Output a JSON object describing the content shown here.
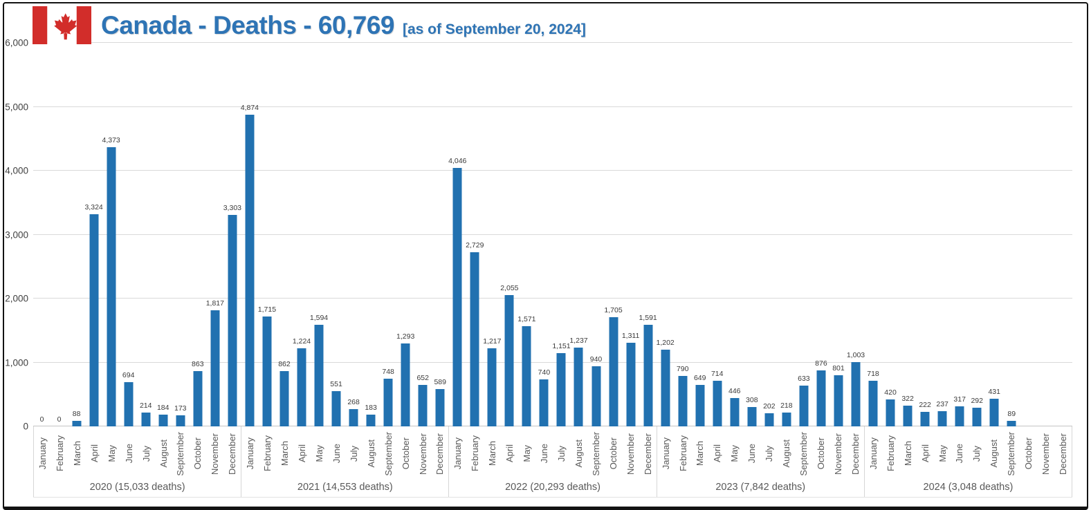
{
  "header": {
    "title": "Canada - Deaths - 60,769",
    "subtitle": "[as of September 20, 2024]",
    "flag_icon": "canada-flag-icon",
    "title_color": "#2e74b5"
  },
  "chart_data": {
    "type": "bar",
    "title": "Canada - Deaths - 60,769",
    "subtitle": "[as of September 20, 2024]",
    "bar_color": "#2171b0",
    "grid": true,
    "ylim": [
      0,
      6000
    ],
    "ytick_interval": 1000,
    "yticks": [
      "0",
      "1,000",
      "2,000",
      "3,000",
      "4,000",
      "5,000",
      "6,000"
    ],
    "months": [
      "January",
      "February",
      "March",
      "April",
      "May",
      "June",
      "July",
      "August",
      "September",
      "October",
      "November",
      "December"
    ],
    "groups": [
      {
        "year": "2020",
        "label": "2020 (15,033 deaths)",
        "total": 15033,
        "values": [
          0,
          0,
          88,
          3324,
          4373,
          694,
          214,
          184,
          173,
          863,
          1817,
          3303
        ]
      },
      {
        "year": "2021",
        "label": "2021 (14,553 deaths)",
        "total": 14553,
        "values": [
          4874,
          1715,
          862,
          1224,
          1594,
          551,
          268,
          183,
          748,
          1293,
          652,
          589
        ]
      },
      {
        "year": "2022",
        "label": "2022 (20,293 deaths)",
        "total": 20293,
        "values": [
          4046,
          2729,
          1217,
          2055,
          1571,
          740,
          1151,
          1237,
          940,
          1705,
          1311,
          1591
        ]
      },
      {
        "year": "2023",
        "label": "2023 (7,842 deaths)",
        "total": 7842,
        "values": [
          1202,
          790,
          649,
          714,
          446,
          308,
          202,
          218,
          633,
          876,
          801,
          1003
        ]
      },
      {
        "year": "2024",
        "label": "2024 (3,048 deaths)",
        "total": 3048,
        "values": [
          718,
          420,
          322,
          222,
          237,
          317,
          292,
          431,
          89,
          null,
          null,
          null
        ]
      }
    ]
  }
}
